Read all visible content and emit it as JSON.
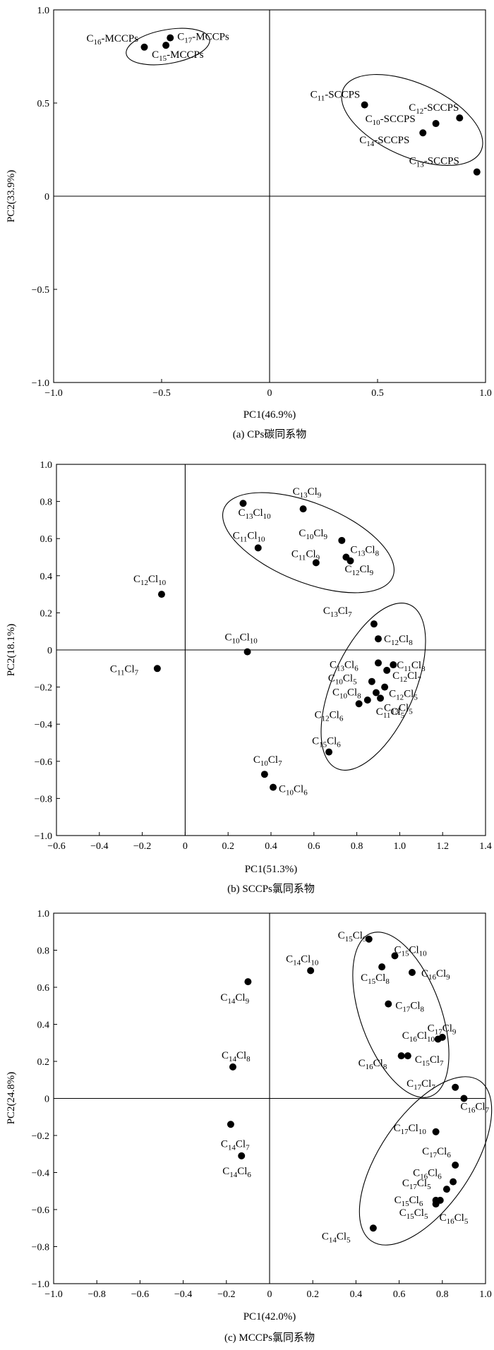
{
  "chart_data": [
    {
      "type": "scatter",
      "caption": "(a)  CPs碳同系物",
      "xlabel": "PC1(46.9%)",
      "ylabel": "PC2(33.9%)",
      "xlim": [
        -1.0,
        1.0
      ],
      "ylim": [
        -1.0,
        1.0
      ],
      "xticks": [
        "−1.0",
        "−0.5",
        "0",
        "0.5",
        "1.0"
      ],
      "yticks": [
        "1.0",
        "0.5",
        "0",
        "−0.5",
        "−1.0"
      ],
      "points": [
        {
          "label": "C16-MCCPs",
          "x": -0.58,
          "y": 0.8
        },
        {
          "label": "C17-MCCPs",
          "x": -0.46,
          "y": 0.85
        },
        {
          "label": "C15-MCCPs",
          "x": -0.48,
          "y": 0.81
        },
        {
          "label": "C11-SCCPS",
          "x": 0.44,
          "y": 0.49
        },
        {
          "label": "C12-SCCPS",
          "x": 0.88,
          "y": 0.42
        },
        {
          "label": "C10-SCCPS",
          "x": 0.77,
          "y": 0.39
        },
        {
          "label": "C14-SCCPS",
          "x": 0.71,
          "y": 0.34
        },
        {
          "label": "C13-SCCPS",
          "x": 0.96,
          "y": 0.13
        }
      ]
    },
    {
      "type": "scatter",
      "caption": "(b)  SCCPs氯同系物",
      "xlabel": "PC1(51.3%)",
      "ylabel": "PC2(18.1%)",
      "xlim": [
        -0.6,
        1.4
      ],
      "ylim": [
        -1.0,
        1.0
      ],
      "xticks": [
        "−0.6",
        "−0.4",
        "−0.2",
        "0",
        "0.2",
        "0.4",
        "0.6",
        "0.8",
        "1.0",
        "1.2",
        "1.4"
      ],
      "yticks": [
        "1.0",
        "0.8",
        "0.6",
        "0.4",
        "0.2",
        "0",
        "−0.2",
        "−0.4",
        "−0.6",
        "−0.8",
        "−1.0"
      ],
      "points": [
        {
          "label": "C13Cl9",
          "x": 0.55,
          "y": 0.76
        },
        {
          "label": "C13Cl10",
          "x": 0.27,
          "y": 0.79
        },
        {
          "label": "C11Cl10",
          "x": 0.34,
          "y": 0.55
        },
        {
          "label": "C10Cl9",
          "x": 0.73,
          "y": 0.59
        },
        {
          "label": "C11Cl9",
          "x": 0.61,
          "y": 0.47
        },
        {
          "label": "C13Cl8",
          "x": 0.75,
          "y": 0.5
        },
        {
          "label": "C12Cl9",
          "x": 0.77,
          "y": 0.48
        },
        {
          "label": "C12Cl10",
          "x": -0.11,
          "y": 0.3
        },
        {
          "label": "C10Cl10",
          "x": 0.29,
          "y": -0.01
        },
        {
          "label": "C11Cl7",
          "x": -0.13,
          "y": -0.1
        },
        {
          "label": "C13Cl7",
          "x": 0.88,
          "y": 0.14
        },
        {
          "label": "C12Cl8",
          "x": 0.9,
          "y": 0.06
        },
        {
          "label": "C13Cl6",
          "x": 0.9,
          "y": -0.07
        },
        {
          "label": "C11Cl8",
          "x": 0.97,
          "y": -0.08
        },
        {
          "label": "C10Cl5",
          "x": 0.87,
          "y": -0.17
        },
        {
          "label": "C12Cl7",
          "x": 0.94,
          "y": -0.11
        },
        {
          "label": "C10Cl8",
          "x": 0.89,
          "y": -0.23
        },
        {
          "label": "C12Cl5",
          "x": 0.93,
          "y": -0.2
        },
        {
          "label": "C13Cl5",
          "x": 0.91,
          "y": -0.26
        },
        {
          "label": "C12Cl6",
          "x": 0.81,
          "y": -0.29
        },
        {
          "label": "C11Cl5",
          "x": 0.85,
          "y": -0.27
        },
        {
          "label": "C15Cl6",
          "x": 0.67,
          "y": -0.55
        },
        {
          "label": "C10Cl7",
          "x": 0.37,
          "y": -0.67
        },
        {
          "label": "C10Cl6",
          "x": 0.41,
          "y": -0.74
        }
      ]
    },
    {
      "type": "scatter",
      "caption": "(c)  MCCPs氯同系物",
      "xlabel": "PC1(42.0%)",
      "ylabel": "PC2(24.8%)",
      "xlim": [
        -1.0,
        1.0
      ],
      "ylim": [
        -1.0,
        1.0
      ],
      "xticks": [
        "−1.0",
        "−0.8",
        "−0.6",
        "−0.4",
        "−0.2",
        "0",
        "0.2",
        "0.4",
        "0.6",
        "0.8",
        "1.0"
      ],
      "yticks": [
        "1.0",
        "0.8",
        "0.6",
        "0.4",
        "0.2",
        "0",
        "−0.2",
        "−0.4",
        "−0.6",
        "−0.8",
        "−1.0"
      ],
      "points": [
        {
          "label": "C15Cl9",
          "x": 0.46,
          "y": 0.86
        },
        {
          "label": "C15Cl10",
          "x": 0.58,
          "y": 0.77
        },
        {
          "label": "C14Cl10",
          "x": 0.19,
          "y": 0.69
        },
        {
          "label": "C15Cl8",
          "x": 0.52,
          "y": 0.71
        },
        {
          "label": "C16Cl9",
          "x": 0.66,
          "y": 0.68
        },
        {
          "label": "C14Cl9",
          "x": -0.1,
          "y": 0.63
        },
        {
          "label": "C17Cl8",
          "x": 0.55,
          "y": 0.51
        },
        {
          "label": "C17Cl9",
          "x": 0.78,
          "y": 0.32
        },
        {
          "label": "C16Cl10",
          "x": 0.8,
          "y": 0.33
        },
        {
          "label": "C14Cl8",
          "x": -0.17,
          "y": 0.17
        },
        {
          "label": "C16Cl8",
          "x": 0.61,
          "y": 0.23
        },
        {
          "label": "C15Cl7",
          "x": 0.64,
          "y": 0.23
        },
        {
          "label": "C17Cl7",
          "x": 0.86,
          "y": 0.06
        },
        {
          "label": "C16Cl7",
          "x": 0.9,
          "y": 0.0
        },
        {
          "label": "C17Cl10",
          "x": 0.77,
          "y": -0.18
        },
        {
          "label": "C14Cl7",
          "x": -0.18,
          "y": -0.14
        },
        {
          "label": "C14Cl6",
          "x": -0.13,
          "y": -0.31
        },
        {
          "label": "C17Cl6",
          "x": 0.86,
          "y": -0.36
        },
        {
          "label": "C16Cl6",
          "x": 0.85,
          "y": -0.45
        },
        {
          "label": "C17Cl5",
          "x": 0.82,
          "y": -0.49
        },
        {
          "label": "C15Cl6",
          "x": 0.77,
          "y": -0.55
        },
        {
          "label": "C15Cl5",
          "x": 0.79,
          "y": -0.55
        },
        {
          "label": "C16Cl5",
          "x": 0.77,
          "y": -0.57
        },
        {
          "label": "C14Cl5",
          "x": 0.48,
          "y": -0.7
        }
      ]
    }
  ]
}
